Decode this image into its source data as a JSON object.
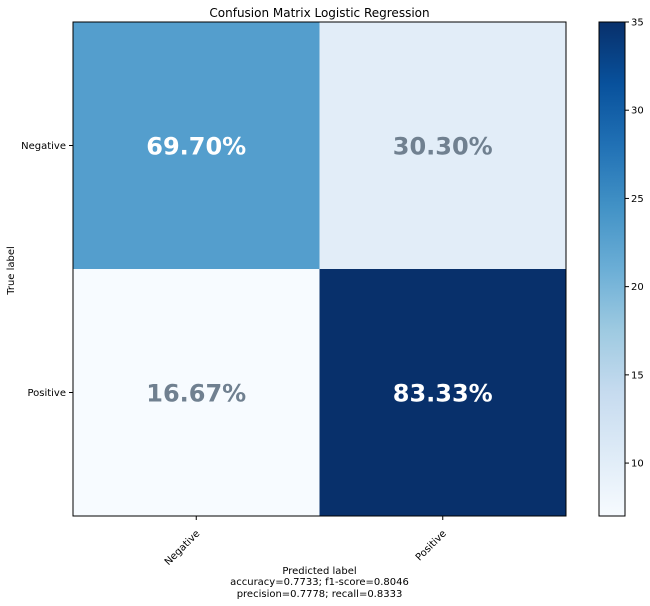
{
  "chart_data": {
    "type": "heatmap",
    "title": "Confusion Matrix Logistic Regression",
    "xlabel": "Predicted label",
    "ylabel": "True label",
    "x_categories": [
      "Negative",
      "Positive"
    ],
    "y_categories": [
      "Negative",
      "Positive"
    ],
    "cells": [
      [
        {
          "value": 23,
          "label": "69.70%"
        },
        {
          "value": 10,
          "label": "30.30%"
        }
      ],
      [
        {
          "value": 7,
          "label": "16.67%"
        },
        {
          "value": 35,
          "label": "83.33%"
        }
      ]
    ],
    "metrics_lines": [
      "accuracy=0.7733; f1-score=0.8046",
      "precision=0.7778; recall=0.8333"
    ],
    "colorbar": {
      "range": [
        7,
        35
      ],
      "ticks": [
        10,
        15,
        20,
        25,
        30,
        35
      ],
      "colormap": "Blues"
    },
    "colors": {
      "text_light_cell": "#708090",
      "text_dark_cell": "#ffffff"
    }
  }
}
